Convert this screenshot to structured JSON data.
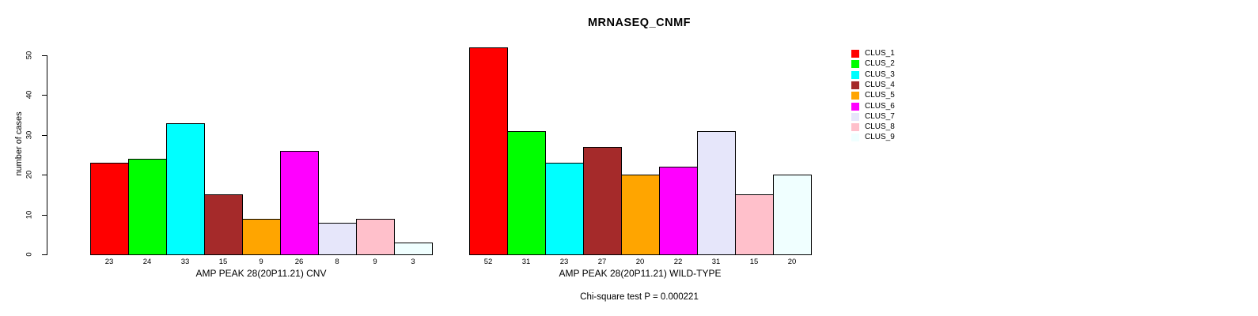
{
  "chart_data": {
    "type": "bar",
    "title": "MRNASEQ_CNMF",
    "ylabel": "number of cases",
    "ylim": [
      0,
      50
    ],
    "yticks": [
      0,
      10,
      20,
      30,
      40,
      50
    ],
    "grid": false,
    "legend_position": "right",
    "series_labels": [
      "CLUS_1",
      "CLUS_2",
      "CLUS_3",
      "CLUS_4",
      "CLUS_5",
      "CLUS_6",
      "CLUS_7",
      "CLUS_8",
      "CLUS_9"
    ],
    "colors": [
      "#FF0000",
      "#00FF00",
      "#00FFFF",
      "#A52A2A",
      "#FFA500",
      "#FF00FF",
      "#E6E6FA",
      "#FFC0CB",
      "#F0FFFF"
    ],
    "groups": [
      {
        "xlabel": "AMP PEAK 28(20P11.21) CNV",
        "values": [
          23,
          24,
          33,
          15,
          9,
          26,
          8,
          9,
          3
        ]
      },
      {
        "xlabel": "AMP PEAK 28(20P11.21) WILD-TYPE",
        "values": [
          52,
          31,
          23,
          27,
          20,
          22,
          31,
          15,
          20
        ]
      }
    ],
    "footnote": "Chi-square test P = 0.000221"
  }
}
